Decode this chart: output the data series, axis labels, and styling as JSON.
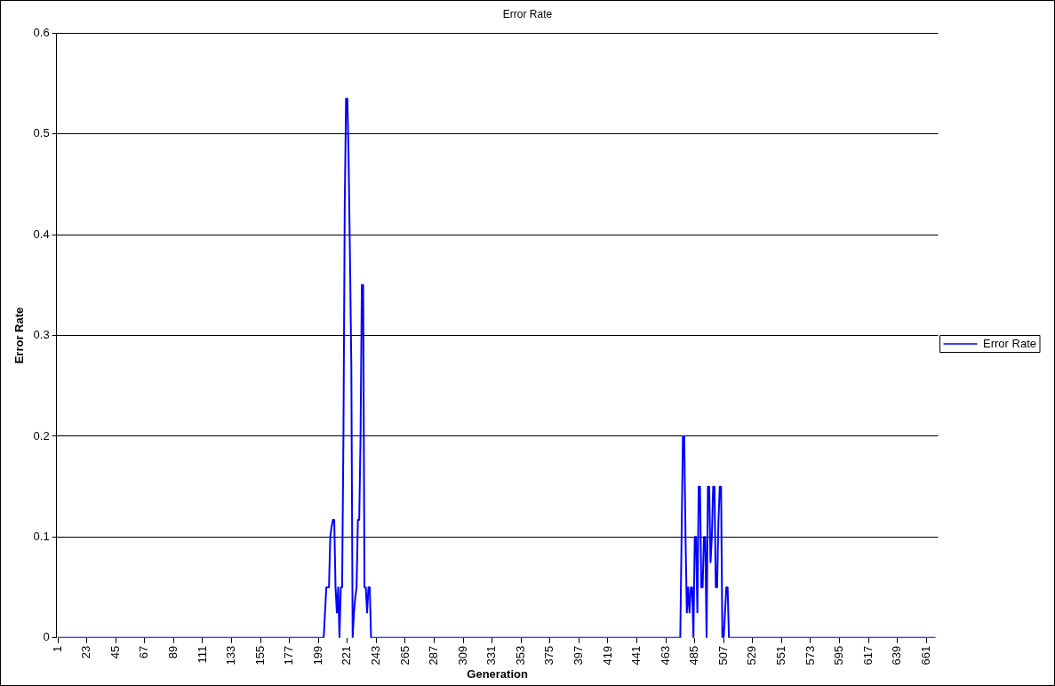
{
  "chart_data": {
    "type": "line",
    "title": "Error Rate",
    "xlabel": "Generation",
    "ylabel": "Error Rate",
    "xlim": [
      0,
      670
    ],
    "xticks": [
      1,
      23,
      45,
      67,
      89,
      111,
      133,
      155,
      177,
      199,
      221,
      243,
      265,
      287,
      309,
      331,
      353,
      375,
      397,
      419,
      441,
      463,
      485,
      507,
      529,
      551,
      573,
      595,
      617,
      639,
      661
    ],
    "ylim": [
      0,
      0.6
    ],
    "yticks": [
      0,
      0.1,
      0.2,
      0.3,
      0.4,
      0.5,
      0.6
    ],
    "grid": "y",
    "legend": "right",
    "series": [
      {
        "name": "Error Rate",
        "color": "#0000ff",
        "x": [
          1,
          203,
          204,
          205,
          206,
          207,
          208,
          209,
          210,
          211,
          212,
          213,
          214,
          215,
          216,
          217,
          218,
          219,
          220,
          221,
          222,
          223,
          224,
          225,
          226,
          227,
          228,
          229,
          230,
          231,
          232,
          233,
          234,
          235,
          236,
          237,
          238,
          239,
          474,
          475,
          476,
          477,
          478,
          479,
          480,
          481,
          482,
          483,
          484,
          485,
          486,
          487,
          488,
          489,
          490,
          491,
          492,
          493,
          494,
          495,
          496,
          497,
          498,
          499,
          500,
          501,
          502,
          503,
          504,
          505,
          506,
          507,
          508,
          509,
          510,
          511,
          668
        ],
        "values": [
          0,
          0,
          0.025,
          0.05,
          0.05,
          0.05,
          0.1,
          0.11,
          0.117,
          0.117,
          0.05,
          0.025,
          0.05,
          0,
          0.05,
          0.05,
          0.2,
          0.43,
          0.535,
          0.535,
          0.47,
          0.375,
          0.27,
          0,
          0.025,
          0.04,
          0.05,
          0.117,
          0.117,
          0.2,
          0.35,
          0.35,
          0.05,
          0.05,
          0.025,
          0.05,
          0.05,
          0,
          0,
          0.1,
          0.2,
          0.2,
          0.1,
          0.025,
          0.05,
          0.025,
          0.05,
          0.05,
          0,
          0.1,
          0.1,
          0.025,
          0.15,
          0.15,
          0.05,
          0.05,
          0.1,
          0.1,
          0,
          0.15,
          0.15,
          0.075,
          0.1,
          0.15,
          0.15,
          0.05,
          0.05,
          0.115,
          0.15,
          0.15,
          0,
          0,
          0.025,
          0.05,
          0.05,
          0,
          0
        ]
      }
    ]
  }
}
